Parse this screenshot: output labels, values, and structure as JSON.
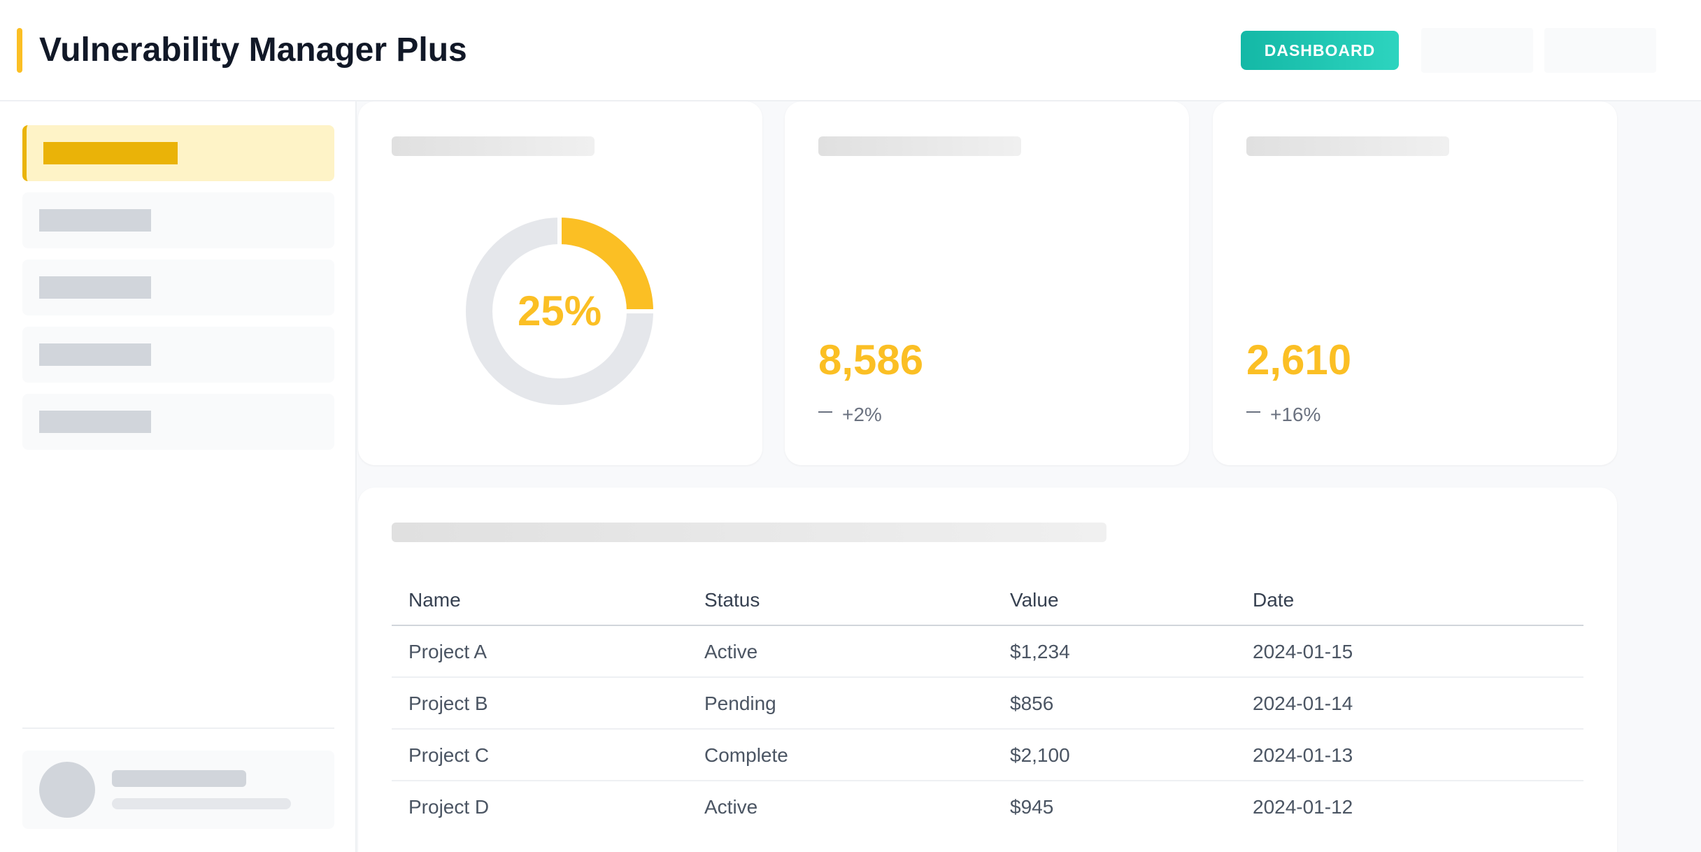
{
  "app": {
    "title": "Vulnerability Manager Plus"
  },
  "header": {
    "dashboard_button": "DASHBOARD"
  },
  "colors": {
    "accent": "#fbbf24",
    "teal": "#14b8a6",
    "track": "#e5e7eb"
  },
  "cards": {
    "donut": {
      "percent_label": "25%",
      "percent": 25
    },
    "stat1": {
      "value": "8,586",
      "change": "+2%"
    },
    "stat2": {
      "value": "2,610",
      "change": "+16%"
    }
  },
  "table": {
    "columns": [
      "Name",
      "Status",
      "Value",
      "Date"
    ],
    "rows": [
      [
        "Project A",
        "Active",
        "$1,234",
        "2024-01-15"
      ],
      [
        "Project B",
        "Pending",
        "$856",
        "2024-01-14"
      ],
      [
        "Project C",
        "Complete",
        "$2,100",
        "2024-01-13"
      ],
      [
        "Project D",
        "Active",
        "$945",
        "2024-01-12"
      ]
    ]
  }
}
